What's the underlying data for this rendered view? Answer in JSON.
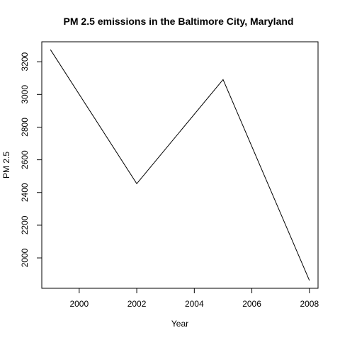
{
  "chart_data": {
    "type": "line",
    "title": "PM 2.5 emissions in the Baltimore City, Maryland",
    "xlabel": "Year",
    "ylabel": "PM 2.5",
    "x": [
      1999,
      2002,
      2005,
      2008
    ],
    "series": [
      {
        "values": [
          3274,
          2454,
          3091,
          1862
        ]
      }
    ],
    "xlim": [
      1998.7,
      2008.3
    ],
    "ylim": [
      1814,
      3322
    ],
    "xticks": [
      2000,
      2002,
      2004,
      2006,
      2008
    ],
    "yticks": [
      2000,
      2200,
      2400,
      2600,
      2800,
      3000,
      3200
    ],
    "grid": false,
    "line_color": "#000000"
  }
}
